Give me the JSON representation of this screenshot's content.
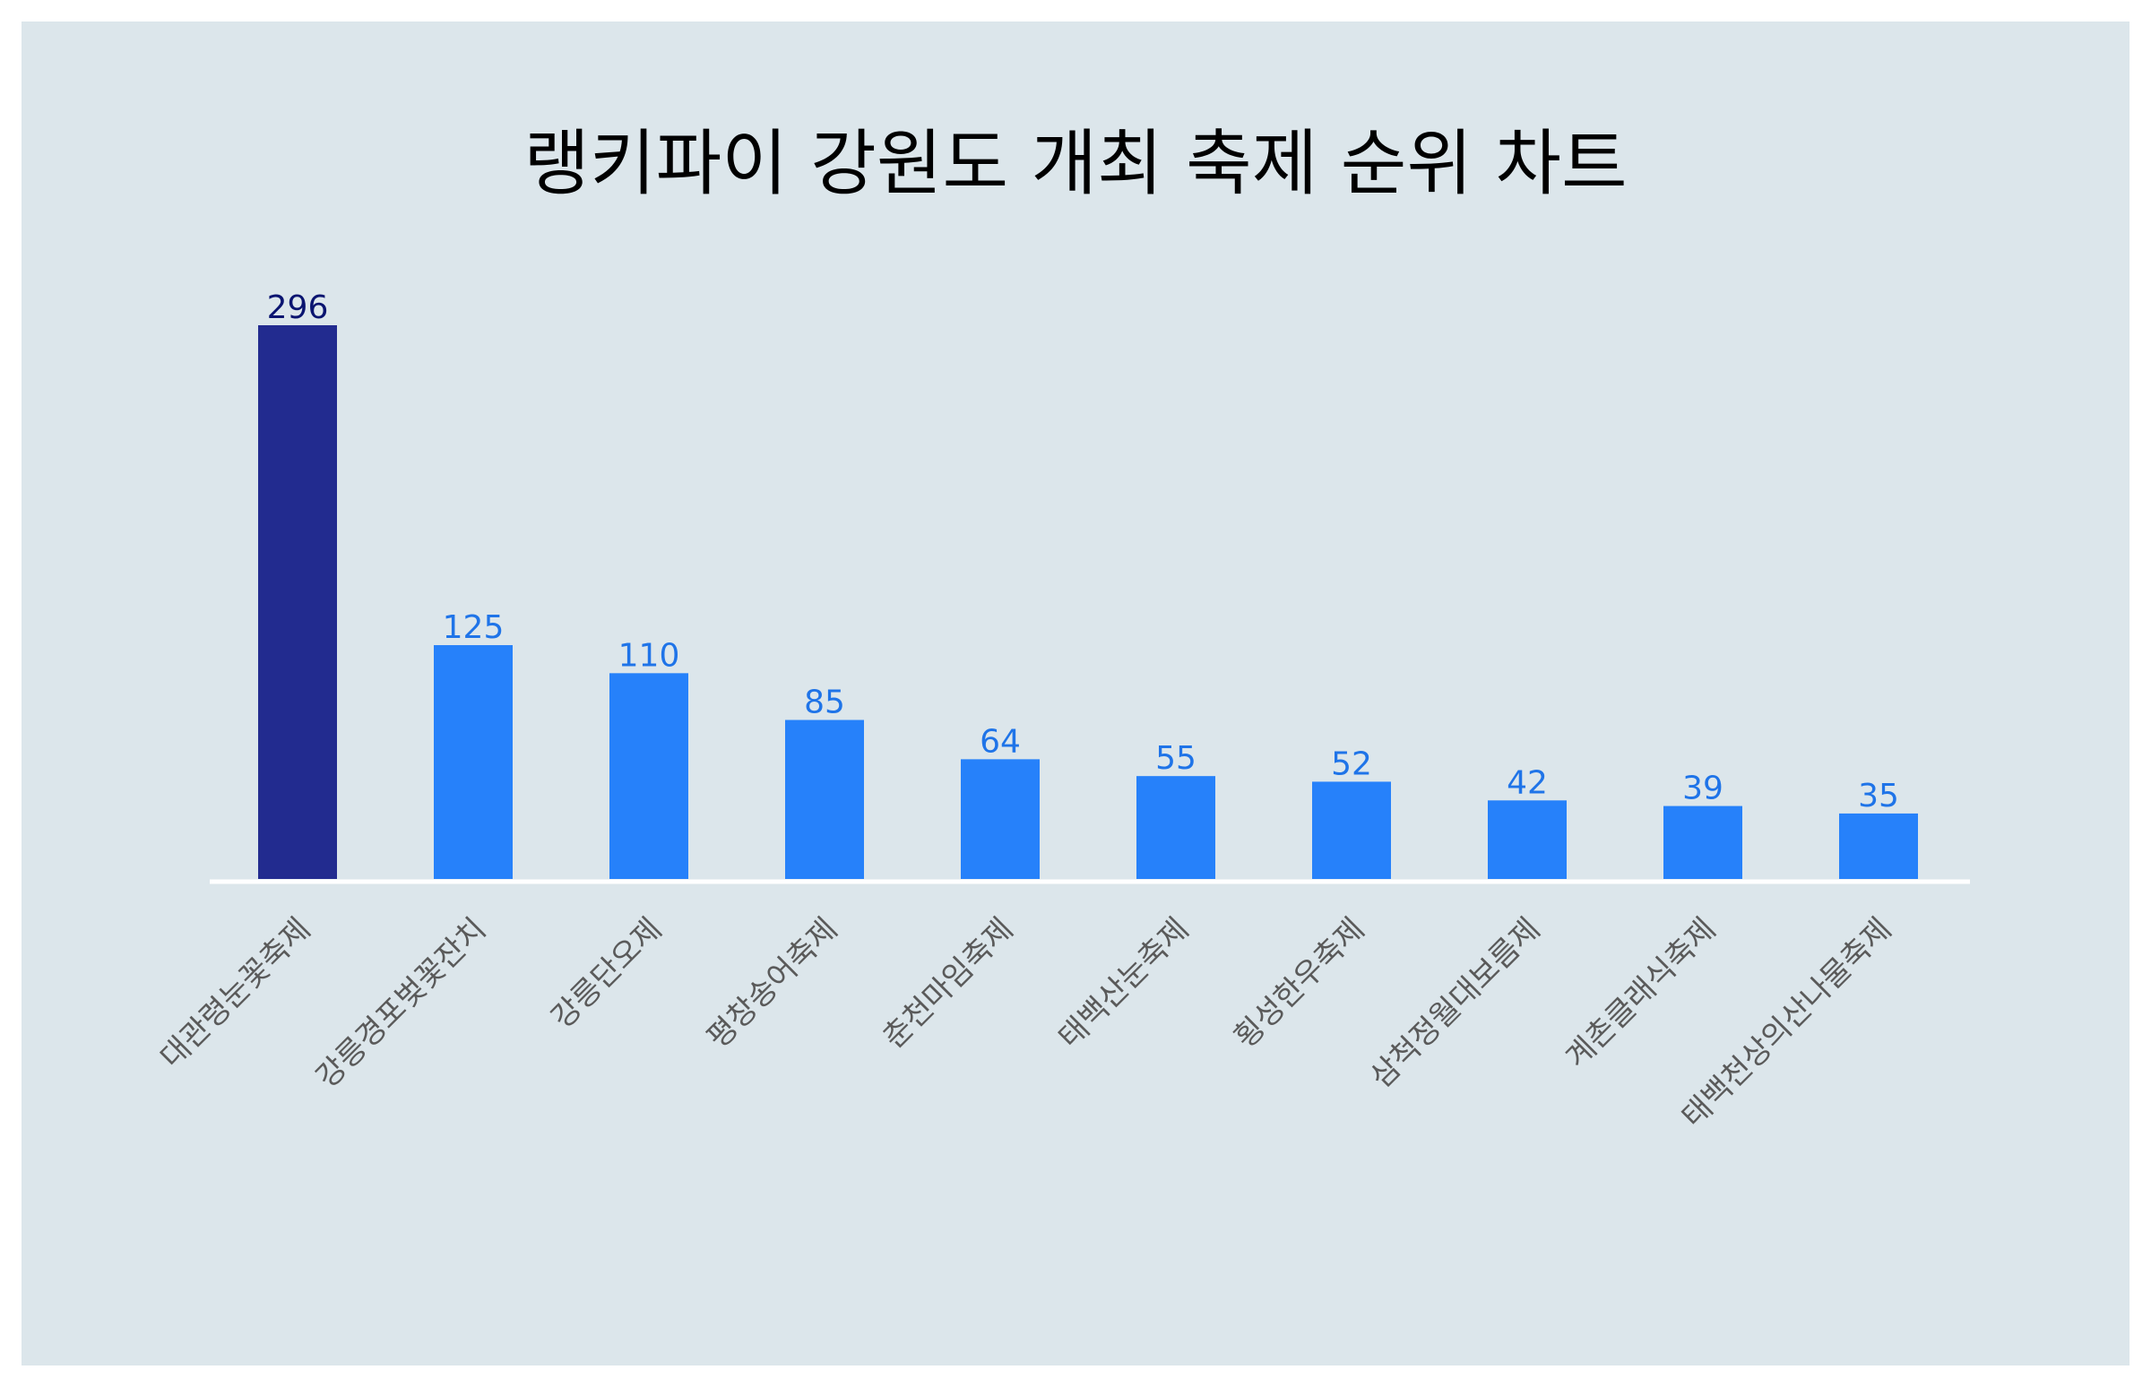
{
  "chart_data": {
    "type": "bar",
    "title": "랭키파이 강원도 개최 축제 순위 차트",
    "xlabel": "",
    "ylabel": "",
    "categories": [
      "대관령눈꽃축제",
      "강릉경포벚꽃잔치",
      "강릉단오제",
      "평창송어축제",
      "춘천마임축제",
      "태백산눈축제",
      "횡성한우축제",
      "삼척정월대보름제",
      "계촌클래식축제",
      "태백천상의산나물축제"
    ],
    "values": [
      296,
      125,
      110,
      85,
      64,
      55,
      52,
      42,
      39,
      35
    ],
    "ylim": [
      0,
      296
    ],
    "grid": false,
    "legend": "none",
    "colors": {
      "highlight_bar": "#222b8f",
      "bar": "#2681fa",
      "highlight_label": "#0a1470",
      "label": "#1f74e8",
      "baseline": "#ffffff",
      "tick_label": "#5a5a5a",
      "title": "#000000",
      "background": "#dce6eb"
    }
  }
}
